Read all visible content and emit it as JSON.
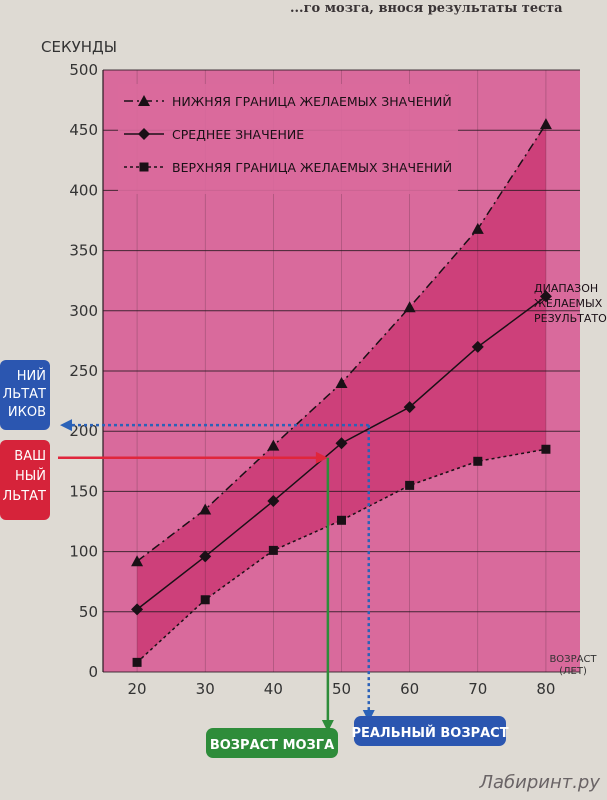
{
  "header_fragment": "...го мозга, внося результаты теста",
  "watermark": "Лабиринт.ру",
  "chart_data": {
    "type": "line",
    "ylabel": "СЕКУНДЫ",
    "xlabel": "ВОЗРАСТ (ЛЕТ)",
    "x": [
      20,
      30,
      40,
      50,
      60,
      70,
      80
    ],
    "xlim": [
      15,
      85
    ],
    "ylim": [
      0,
      500
    ],
    "y_ticks": [
      0,
      50,
      100,
      150,
      200,
      250,
      300,
      350,
      400,
      450,
      500
    ],
    "x_ticks": [
      20,
      30,
      40,
      50,
      60,
      70,
      80
    ],
    "grid": true,
    "legend_position": "top-left",
    "series": [
      {
        "name": "НИЖНЯЯ ГРАНИЦА ЖЕЛАЕМЫХ ЗНАЧЕНИЙ",
        "marker": "triangle",
        "style": "dash-dot",
        "values": [
          92,
          135,
          188,
          240,
          303,
          368,
          455
        ]
      },
      {
        "name": "СРЕДНЕЕ ЗНАЧЕНИЕ",
        "marker": "diamond",
        "style": "solid",
        "values": [
          52,
          96,
          142,
          190,
          220,
          270,
          312
        ]
      },
      {
        "name": "ВЕРХНЯЯ ГРАНИЦА ЖЕЛАЕМЫХ ЗНАЧЕНИЙ",
        "marker": "square",
        "style": "dotted",
        "values": [
          8,
          60,
          101,
          126,
          155,
          175,
          185
        ]
      }
    ],
    "annotations": {
      "range_label": "ДИАПАЗОН ЖЕЛАЕМЫХ РЕЗУЛЬТАТОВ",
      "left_blue_label": "ВАШ НОРМАЛЬНЫЙ РЕЗУЛЬТАТ СВЕРСТНИКОВ",
      "left_red_label": "ВАШ РЕАЛЬНЫЙ РЕЗУЛЬТАТ",
      "brain_age_label": "ВОЗРАСТ МОЗГА",
      "real_age_label": "РЕАЛЬНЫЙ ВОЗРАСТ",
      "red_arrow_y": 178,
      "blue_arrow_y": 205,
      "brain_age_x": 48,
      "real_age_x": 54
    },
    "colors": {
      "plot_bg": "#d96a9c",
      "band_fill": "#c8336f",
      "grid": "#2a1a22",
      "line": "#1a1016",
      "red_arrow": "#e0263c",
      "blue_arrow": "#2b62b8",
      "green_box": "#2e8c3a",
      "blue_box": "#2b56b0",
      "red_box": "#d6233a"
    }
  }
}
